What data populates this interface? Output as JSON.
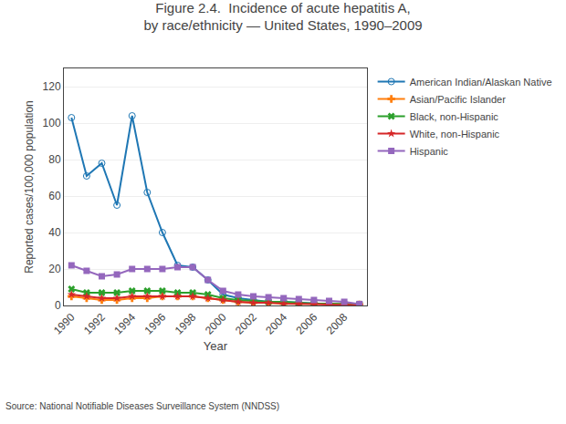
{
  "chart_data": {
    "type": "line",
    "title": "Figure 2.4.  Incidence of acute hepatitis A,",
    "subtitle": "by race/ethnicity — United States, 1990–2009",
    "x_label": "Year",
    "y_label": "Reported cases/100,000 population",
    "annotations": [
      "Source: National Notifiable Diseases Surveillance System (NNDSS)"
    ],
    "x": [
      1990,
      1991,
      1992,
      1993,
      1994,
      1995,
      1996,
      1997,
      1998,
      1999,
      2000,
      2001,
      2002,
      2003,
      2004,
      2005,
      2006,
      2007,
      2008,
      2009
    ],
    "series": [
      {
        "name": "American Indian/Alaskan Native",
        "marker": "circle-open",
        "values": [
          103,
          71,
          78,
          55,
          104,
          62,
          40,
          22,
          21,
          14,
          6,
          4,
          3,
          2,
          2,
          1.5,
          1,
          0.8,
          0.5,
          0.3
        ]
      },
      {
        "name": "Asian/Pacific Islander",
        "marker": "cross",
        "values": [
          5,
          4,
          3,
          3,
          4,
          4,
          5,
          5,
          5,
          4,
          3,
          2,
          1.5,
          1.5,
          1,
          1,
          1,
          0.8,
          0.7,
          0.5
        ]
      },
      {
        "name": "Black, non-Hispanic",
        "marker": "x",
        "values": [
          9,
          7,
          7,
          7,
          8,
          8,
          8,
          7,
          7,
          6,
          4,
          3,
          2.5,
          2,
          2,
          1.5,
          1,
          1,
          0.8,
          0.6
        ]
      },
      {
        "name": "White, non-Hispanic",
        "marker": "star",
        "values": [
          6,
          5,
          4,
          4,
          5,
          5,
          5,
          5,
          5,
          4,
          3,
          2,
          1.5,
          1.5,
          1,
          1,
          0.8,
          0.5,
          0.4,
          0.3
        ]
      },
      {
        "name": "Hispanic",
        "marker": "square",
        "values": [
          22,
          19,
          16,
          17,
          20,
          20,
          20,
          21,
          21,
          14,
          8,
          6,
          5,
          4.5,
          4,
          3.5,
          3,
          2.5,
          2,
          0.8
        ]
      }
    ],
    "xlim": [
      1989.5,
      2009.5
    ],
    "xticks": [
      1990,
      1992,
      1994,
      1996,
      1998,
      2000,
      2002,
      2004,
      2006,
      2008
    ],
    "ylim": [
      0,
      130
    ],
    "yticks": [
      0,
      20,
      40,
      60,
      80,
      100,
      120
    ],
    "grid": true,
    "legend": "right"
  }
}
